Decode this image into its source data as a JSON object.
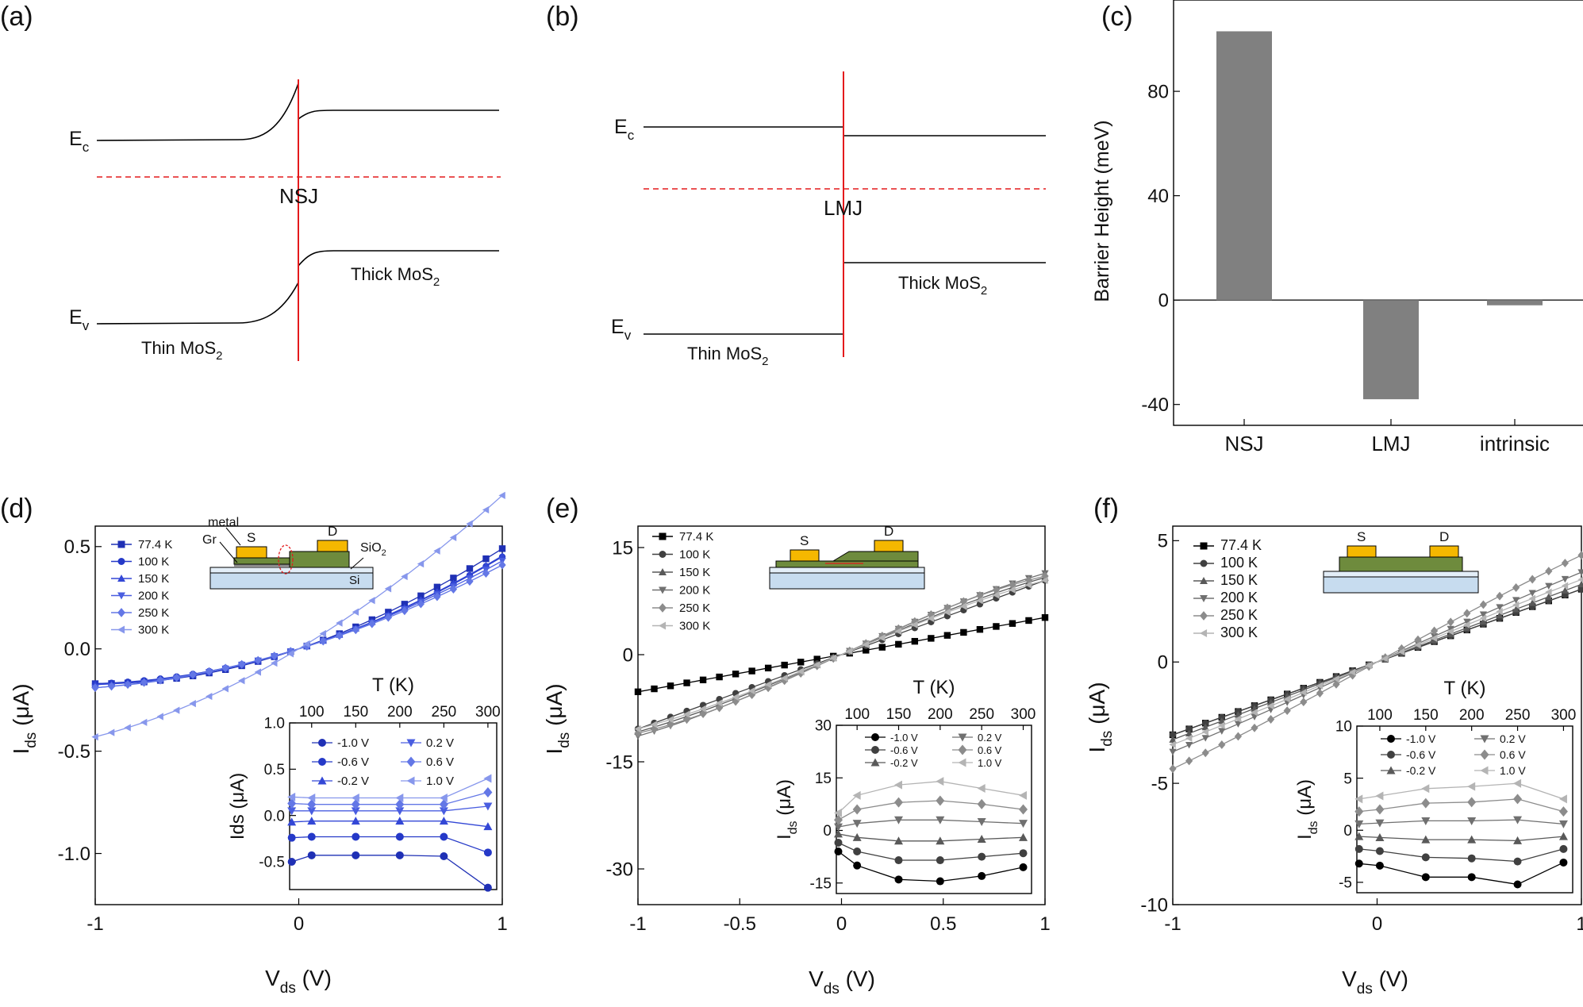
{
  "panel_labels": {
    "a": "(a)",
    "b": "(b)",
    "c": "(c)",
    "d": "(d)",
    "e": "(e)",
    "f": "(f)"
  },
  "band_diagrams": {
    "a": {
      "junction": "NSJ",
      "ec": "E",
      "ec_sub": "c",
      "ev": "E",
      "ev_sub": "v",
      "left_prefix": "Thin MoS",
      "left_sub": "2",
      "right_prefix": "Thick MoS",
      "right_sub": "2"
    },
    "b": {
      "junction": "LMJ",
      "ec": "E",
      "ec_sub": "c",
      "ev": "E",
      "ev_sub": "v",
      "left_prefix": "Thin MoS",
      "left_sub": "2",
      "right_prefix": "Thick MoS",
      "right_sub": "2"
    }
  },
  "colors": {
    "fermi": "#e41a1c",
    "interface": "#e41a1c",
    "bar": "#808080",
    "d": [
      "#1f30b5",
      "#2539c8",
      "#3347d6",
      "#4a5ee0",
      "#6377e6",
      "#8797ec"
    ],
    "e": [
      "#000000",
      "#404040",
      "#595959",
      "#707070",
      "#8c8c8c",
      "#b4b4b4"
    ],
    "f": [
      "#000000",
      "#404040",
      "#595959",
      "#707070",
      "#8c8c8c",
      "#b4b4b4"
    ],
    "inset_d": [
      "#1f30b5",
      "#2539c8",
      "#3347d6",
      "#4a5ee0",
      "#6377e6",
      "#8797ec"
    ],
    "inset_gray": [
      "#000000",
      "#404040",
      "#595959",
      "#707070",
      "#8c8c8c",
      "#b4b4b4"
    ],
    "gold": "#f5b800",
    "green": "#6e8b3d",
    "si": "#c7dcef",
    "gr": "#8c8c8c"
  },
  "chart_data": [
    {
      "id": "c",
      "type": "bar",
      "ylabel": "Barrier Height (meV)",
      "xlabel": "",
      "categories": [
        "NSJ",
        "LMJ",
        "intrinsic"
      ],
      "values": [
        103,
        -38,
        -2
      ],
      "ylim": [
        -48,
        115
      ],
      "yticks": [
        -40,
        0,
        40,
        80
      ],
      "ytick_labels": [
        "-40",
        "0",
        "40",
        "80"
      ]
    },
    {
      "id": "d",
      "type": "line",
      "xlabel": "V",
      "xlabel_sub": "ds",
      "xlabel_unit": "(V)",
      "ylabel": "I",
      "ylabel_sub": "ds",
      "ylabel_unit": "(μA)",
      "xlim": [
        -1,
        1
      ],
      "ylim": [
        -1.25,
        0.6
      ],
      "xticks": [
        -1,
        0,
        1
      ],
      "xtick_labels": [
        "-1",
        "0",
        "1"
      ],
      "yticks": [
        -1.0,
        -0.5,
        0.0,
        0.5
      ],
      "ytick_labels": [
        "-1.0",
        "-0.5",
        "0.0",
        "0.5"
      ],
      "legend": [
        "77.4 K",
        "100 K",
        "150 K",
        "200 K",
        "250 K",
        "300 K"
      ],
      "series_params": [
        [
          0.34,
          0.16,
          -0.01
        ],
        [
          0.31,
          0.14,
          0.0
        ],
        [
          0.315,
          0.14,
          0.0
        ],
        [
          0.31,
          0.12,
          0.0
        ],
        [
          0.3,
          0.11,
          0.0
        ],
        [
          0.6,
          0.16,
          -0.01
        ]
      ],
      "inset": {
        "xlabel": "T (K)",
        "ylabel": "Ids (μA)",
        "x": [
          77.4,
          100,
          150,
          200,
          250,
          300
        ],
        "xlim": [
          75,
          310
        ],
        "ylim": [
          -0.8,
          1.0
        ],
        "xticks": [
          100,
          150,
          200,
          250,
          300
        ],
        "xtick_labels": [
          "100",
          "150",
          "200",
          "250",
          "300"
        ],
        "yticks": [
          -0.5,
          0.0,
          0.5,
          1.0
        ],
        "ytick_labels": [
          "-0.5",
          "0.0",
          "0.5",
          "1.0"
        ],
        "legend": [
          "-1.0 V",
          "-0.6 V",
          "-0.2 V",
          "0.2 V",
          "0.6 V",
          "1.0 V"
        ],
        "series": [
          {
            "name": "-1.0 V",
            "values": [
              -0.5,
              -0.43,
              -0.43,
              -0.43,
              -0.44,
              -0.78
            ]
          },
          {
            "name": "-0.6 V",
            "values": [
              -0.24,
              -0.23,
              -0.23,
              -0.23,
              -0.23,
              -0.4
            ]
          },
          {
            "name": "-0.2 V",
            "values": [
              -0.07,
              -0.06,
              -0.06,
              -0.06,
              -0.06,
              -0.12
            ]
          },
          {
            "name": "0.2 V",
            "values": [
              0.05,
              0.05,
              0.05,
              0.05,
              0.05,
              0.1
            ]
          },
          {
            "name": "0.6 V",
            "values": [
              0.13,
              0.12,
              0.12,
              0.12,
              0.12,
              0.25
            ]
          },
          {
            "name": "1.0 V",
            "values": [
              0.2,
              0.19,
              0.19,
              0.19,
              0.19,
              0.4
            ]
          }
        ]
      },
      "device": {
        "s": "S",
        "d": "D",
        "metal": "metal",
        "gr": "Gr",
        "sio2": "SiO",
        "sio2_sub": "2",
        "si": "Si"
      }
    },
    {
      "id": "e",
      "type": "line",
      "xlabel": "V",
      "xlabel_sub": "ds",
      "xlabel_unit": "(V)",
      "ylabel": "I",
      "ylabel_sub": "ds",
      "ylabel_unit": "(μA)",
      "xlim": [
        -1,
        1
      ],
      "ylim": [
        -35,
        18
      ],
      "xticks": [
        -1,
        -0.5,
        0,
        0.5,
        1
      ],
      "xtick_labels": [
        "-1",
        "-0.5",
        "0",
        "0.5",
        "1"
      ],
      "yticks": [
        -30,
        -15,
        0,
        15
      ],
      "ytick_labels": [
        "-30",
        "-15",
        "0",
        "15"
      ],
      "legend": [
        "77.4 K",
        "100 K",
        "150 K",
        "200 K",
        "250 K",
        "300 K"
      ],
      "series_params": [
        [
          5.2,
          0,
          0
        ],
        [
          10.4,
          0,
          0
        ],
        [
          12.2,
          0,
          -1.4
        ],
        [
          13.0,
          0,
          -1.6
        ],
        [
          13.2,
          0,
          -2.2
        ],
        [
          11.8,
          0,
          -1.4
        ]
      ],
      "inset": {
        "xlabel": "T (K)",
        "ylabel": "I",
        "ylabel_sub": "ds",
        "ylabel_unit": "(μA)",
        "x": [
          77.4,
          100,
          150,
          200,
          250,
          300
        ],
        "xlim": [
          75,
          310
        ],
        "ylim": [
          -18,
          30
        ],
        "xticks": [
          100,
          150,
          200,
          250,
          300
        ],
        "xtick_labels": [
          "100",
          "150",
          "200",
          "250",
          "300"
        ],
        "yticks": [
          -15,
          0,
          15,
          30
        ],
        "ytick_labels": [
          "-15",
          "0",
          "15",
          "30"
        ],
        "legend": [
          "-1.0 V",
          "-0.6 V",
          "-0.2 V",
          "0.2 V",
          "0.6 V",
          "1.0 V"
        ],
        "series": [
          {
            "name": "-1.0 V",
            "values": [
              -6,
              -10,
              -14,
              -14.5,
              -13,
              -10.5
            ]
          },
          {
            "name": "-0.6 V",
            "values": [
              -3.5,
              -6,
              -8.5,
              -8.5,
              -7.5,
              -6.5
            ]
          },
          {
            "name": "-0.2 V",
            "values": [
              -1,
              -2,
              -3,
              -3,
              -2.5,
              -2
            ]
          },
          {
            "name": "0.2 V",
            "values": [
              1,
              2,
              3,
              3,
              2.5,
              2
            ]
          },
          {
            "name": "0.6 V",
            "values": [
              3,
              6,
              8,
              8.5,
              7.5,
              6
            ]
          },
          {
            "name": "1.0 V",
            "values": [
              5,
              10,
              13,
              14,
              12,
              10
            ]
          }
        ]
      },
      "device": {
        "s": "S",
        "d": "D"
      }
    },
    {
      "id": "f",
      "type": "line",
      "xlabel": "V",
      "xlabel_sub": "ds",
      "xlabel_unit": "(V)",
      "ylabel": "I",
      "ylabel_sub": "ds",
      "ylabel_unit": "(μA)",
      "xlim": [
        -1,
        1
      ],
      "ylim": [
        -10,
        5.6
      ],
      "xticks": [
        -1,
        0,
        1
      ],
      "xtick_labels": [
        "-1",
        "0",
        "1"
      ],
      "yticks": [
        -10,
        -5,
        0,
        5
      ],
      "ytick_labels": [
        "-10",
        "-5",
        "0",
        "5"
      ],
      "legend": [
        "77.4 K",
        "100 K",
        "150 K",
        "200 K",
        "250 K",
        "300 K"
      ],
      "series_params": [
        [
          3.0,
          0,
          0
        ],
        [
          3.0,
          0,
          0
        ],
        [
          3.2,
          0,
          0
        ],
        [
          3.8,
          0,
          -0.1
        ],
        [
          4.6,
          0,
          -0.2
        ],
        [
          3.5,
          0,
          -0.1
        ]
      ],
      "inset": {
        "xlabel": "T (K)",
        "ylabel": "I",
        "ylabel_sub": "ds",
        "ylabel_unit": "(μA)",
        "x": [
          77.4,
          100,
          150,
          200,
          250,
          300
        ],
        "xlim": [
          75,
          310
        ],
        "ylim": [
          -6,
          10
        ],
        "xticks": [
          100,
          150,
          200,
          250,
          300
        ],
        "xtick_labels": [
          "100",
          "150",
          "200",
          "250",
          "300"
        ],
        "yticks": [
          -5,
          0,
          5,
          10
        ],
        "ytick_labels": [
          "-5",
          "0",
          "5",
          "10"
        ],
        "legend": [
          "-1.0 V",
          "-0.6 V",
          "-0.2 V",
          "0.2 V",
          "0.6 V",
          "1.0 V"
        ],
        "series": [
          {
            "name": "-1.0 V",
            "values": [
              -3.2,
              -3.4,
              -4.5,
              -4.5,
              -5.2,
              -3.1
            ]
          },
          {
            "name": "-0.6 V",
            "values": [
              -1.8,
              -2.0,
              -2.6,
              -2.7,
              -3.0,
              -1.8
            ]
          },
          {
            "name": "-0.2 V",
            "values": [
              -0.6,
              -0.7,
              -0.9,
              -0.9,
              -1.0,
              -0.6
            ]
          },
          {
            "name": "0.2 V",
            "values": [
              0.6,
              0.7,
              0.9,
              0.9,
              1.0,
              0.6
            ]
          },
          {
            "name": "0.6 V",
            "values": [
              1.8,
              2.0,
              2.6,
              2.7,
              3.0,
              1.8
            ]
          },
          {
            "name": "1.0 V",
            "values": [
              3.0,
              3.3,
              4.0,
              4.2,
              4.5,
              3.0
            ]
          }
        ]
      },
      "device": {
        "s": "S",
        "d": "D"
      }
    }
  ]
}
